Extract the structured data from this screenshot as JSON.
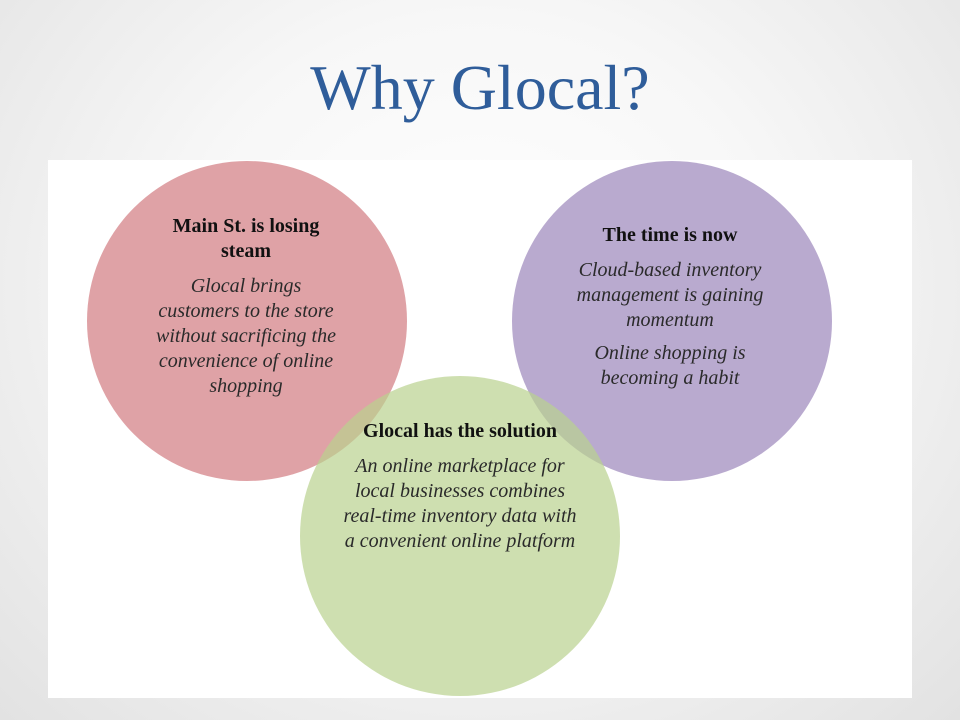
{
  "slide": {
    "title": "Why Glocal?"
  },
  "diagram": {
    "type": "venn",
    "colors": {
      "left": "#d27b80",
      "right": "#9b86ba",
      "bottom": "#b9d28f"
    },
    "circles": [
      {
        "id": "left",
        "heading": "Main St. is losing steam",
        "body": "Glocal brings customers to the store without sacrificing the convenience of online shopping"
      },
      {
        "id": "right",
        "heading": "The time is now",
        "body": "Cloud-based inventory management is gaining momentum",
        "body2": "Online shopping is becoming a habit"
      },
      {
        "id": "bottom",
        "heading": "Glocal has the solution",
        "body": "An online marketplace for local businesses combines real-time inventory data with a convenient online platform"
      }
    ]
  }
}
